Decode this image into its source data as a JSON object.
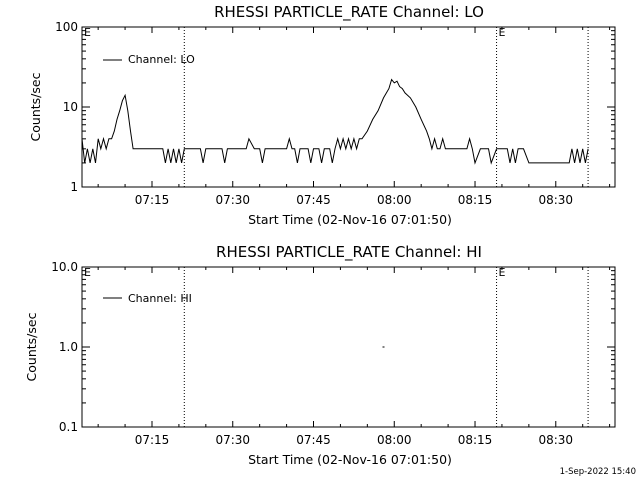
{
  "chart_data": [
    {
      "type": "line",
      "title": "RHESSI PARTICLE_RATE Channel: LO",
      "xlabel": "Start Time (02-Nov-16 07:01:50)",
      "ylabel": "Counts/sec",
      "yscale": "log",
      "ylim": [
        1,
        100
      ],
      "xlim": [
        "07:02:00",
        "08:41:00"
      ],
      "x_ticks": [
        "07:15",
        "07:30",
        "07:45",
        "08:00",
        "08:15",
        "08:30"
      ],
      "y_ticks": [
        "1",
        "10",
        "100"
      ],
      "legend": "Channel: LO",
      "legend_position": "top-left",
      "grid": false,
      "vlines": [
        {
          "time": "07:21:00",
          "marker": ""
        },
        {
          "time": "08:19:00",
          "marker": "E"
        },
        {
          "time": "08:36:00",
          "marker": ""
        }
      ],
      "corner_marker": "E",
      "series": [
        {
          "name": "Channel: LO",
          "x": [
            "07:02:00",
            "07:02:30",
            "07:03:00",
            "07:03:30",
            "07:04:00",
            "07:04:30",
            "07:05:00",
            "07:05:30",
            "07:06:00",
            "07:06:30",
            "07:07:00",
            "07:07:30",
            "07:08:00",
            "07:08:30",
            "07:09:00",
            "07:09:30",
            "07:10:00",
            "07:10:30",
            "07:11:00",
            "07:11:30",
            "07:12:00",
            "07:12:30",
            "07:13:00",
            "07:13:30",
            "07:14:00",
            "07:15:00",
            "07:16:00",
            "07:17:00",
            "07:17:30",
            "07:18:00",
            "07:18:30",
            "07:19:00",
            "07:19:30",
            "07:20:00",
            "07:20:30",
            "07:21:00",
            "07:22:00",
            "07:23:00",
            "07:24:00",
            "07:24:30",
            "07:25:00",
            "07:26:00",
            "07:27:00",
            "07:28:00",
            "07:28:30",
            "07:29:00",
            "07:30:00",
            "07:31:00",
            "07:32:00",
            "07:32:30",
            "07:33:00",
            "07:34:00",
            "07:35:00",
            "07:35:30",
            "07:36:00",
            "07:37:00",
            "07:38:00",
            "07:39:00",
            "07:40:00",
            "07:40:30",
            "07:41:00",
            "07:41:30",
            "07:42:00",
            "07:42:30",
            "07:43:00",
            "07:44:00",
            "07:44:30",
            "07:45:00",
            "07:46:00",
            "07:46:30",
            "07:47:00",
            "07:48:00",
            "07:48:30",
            "07:49:00",
            "07:49:30",
            "07:50:00",
            "07:50:30",
            "07:51:00",
            "07:51:30",
            "07:52:00",
            "07:52:30",
            "07:53:00",
            "07:53:30",
            "07:54:00",
            "07:55:00",
            "07:56:00",
            "07:57:00",
            "07:58:00",
            "07:59:00",
            "07:59:30",
            "08:00:00",
            "08:00:30",
            "08:01:00",
            "08:01:30",
            "08:02:00",
            "08:03:00",
            "08:04:00",
            "08:05:00",
            "08:06:00",
            "08:06:30",
            "08:07:00",
            "08:07:30",
            "08:08:00",
            "08:08:30",
            "08:09:00",
            "08:09:30",
            "08:10:00",
            "08:10:30",
            "08:11:00",
            "08:12:00",
            "08:13:00",
            "08:13:30",
            "08:14:00",
            "08:14:30",
            "08:15:00",
            "08:16:00",
            "08:17:00",
            "08:17:30",
            "08:18:00",
            "08:19:00",
            "08:20:00",
            "08:21:00",
            "08:21:30",
            "08:22:00",
            "08:22:30",
            "08:23:00",
            "08:24:00",
            "08:25:00",
            "08:26:00",
            "08:27:00",
            "08:28:00",
            "08:29:00",
            "08:30:00",
            "08:31:00",
            "08:32:00",
            "08:32:30",
            "08:33:00",
            "08:33:30",
            "08:34:00",
            "08:34:30",
            "08:35:00",
            "08:35:30",
            "08:36:00"
          ],
          "values": [
            4,
            2,
            3,
            2,
            3,
            2,
            4,
            3,
            4,
            3,
            4,
            4,
            5,
            7,
            9,
            12,
            14,
            9,
            5,
            3,
            3,
            3,
            3,
            3,
            3,
            3,
            3,
            3,
            2,
            3,
            2,
            3,
            2,
            3,
            2,
            3,
            3,
            3,
            3,
            2,
            3,
            3,
            3,
            3,
            2,
            3,
            3,
            3,
            3,
            3,
            4,
            3,
            3,
            2,
            3,
            3,
            3,
            3,
            3,
            4,
            3,
            3,
            2,
            3,
            3,
            3,
            2,
            3,
            3,
            2,
            3,
            3,
            2,
            3,
            4,
            3,
            4,
            3,
            4,
            3,
            4,
            3,
            4,
            4,
            5,
            7,
            9,
            13,
            17,
            22,
            20,
            21,
            18,
            17,
            15,
            13,
            10,
            7,
            5,
            4,
            3,
            4,
            3,
            3,
            4,
            3,
            3,
            3,
            3,
            3,
            3,
            3,
            4,
            3,
            2,
            3,
            3,
            3,
            2,
            3,
            3,
            3,
            2,
            3,
            2,
            3,
            3,
            2,
            2,
            2,
            2,
            2,
            2,
            2,
            2,
            2,
            3,
            2,
            3,
            2,
            3,
            2,
            3
          ]
        }
      ]
    },
    {
      "type": "line",
      "title": "RHESSI PARTICLE_RATE Channel: HI",
      "xlabel": "Start Time (02-Nov-16 07:01:50)",
      "ylabel": "Counts/sec",
      "yscale": "log",
      "ylim": [
        0.1,
        10
      ],
      "xlim": [
        "07:02:00",
        "08:41:00"
      ],
      "x_ticks": [
        "07:15",
        "07:30",
        "07:45",
        "08:00",
        "08:15",
        "08:30"
      ],
      "y_ticks": [
        "0.1",
        "1.0",
        "10.0"
      ],
      "legend": "Channel: HI",
      "legend_position": "top-left",
      "grid": false,
      "vlines": [
        {
          "time": "07:21:00",
          "marker": ""
        },
        {
          "time": "08:19:00",
          "marker": "E"
        },
        {
          "time": "08:36:00",
          "marker": ""
        }
      ],
      "corner_marker": "E",
      "series": [
        {
          "name": "Channel: HI",
          "x": [
            "07:58:00"
          ],
          "values": [
            1.0
          ]
        }
      ]
    }
  ],
  "footer": {
    "timestamp": "1-Sep-2022 15:40"
  }
}
